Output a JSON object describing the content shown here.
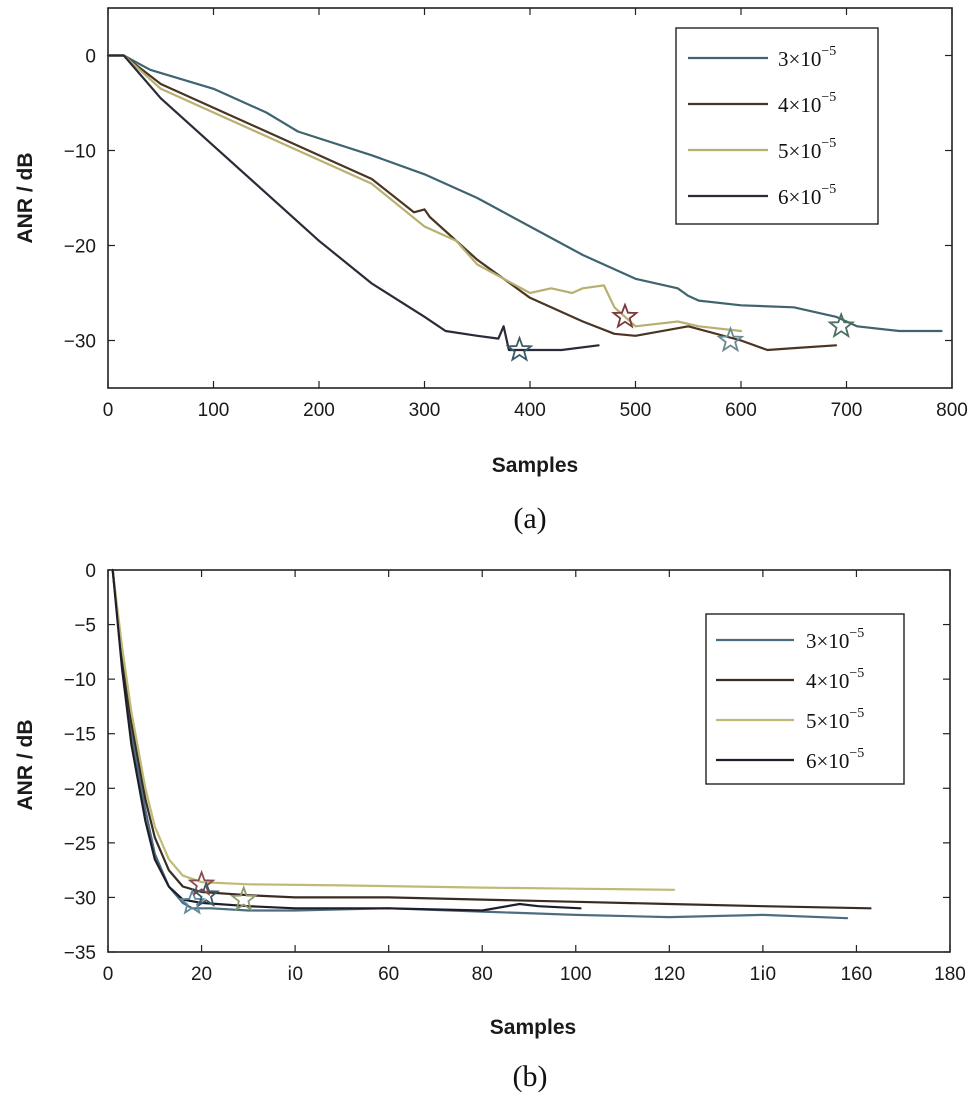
{
  "chart_data": [
    {
      "type": "line",
      "caption": "(a)",
      "xlabel": "Samples",
      "ylabel": "ANR / dB",
      "xlim": [
        0,
        800
      ],
      "ylim": [
        -35,
        5
      ],
      "xticks": [
        0,
        100,
        200,
        300,
        400,
        500,
        600,
        700,
        800
      ],
      "yticks": [
        0,
        -10,
        -20,
        -30
      ],
      "legend_position": "top-right",
      "series": [
        {
          "name": "3×10^-5",
          "base": "3×10",
          "exp": "−5",
          "color": "#3f6470",
          "x": [
            0,
            15,
            40,
            100,
            150,
            180,
            250,
            300,
            350,
            400,
            450,
            500,
            540,
            550,
            560,
            600,
            650,
            690,
            710,
            750,
            790
          ],
          "y": [
            0,
            0,
            -1.5,
            -3.5,
            -6,
            -8,
            -10.5,
            -12.5,
            -15,
            -18,
            -21,
            -23.5,
            -24.5,
            -25.3,
            -25.8,
            -26.3,
            -26.5,
            -27.5,
            -28.5,
            -29,
            -29
          ]
        },
        {
          "name": "4×10^-5",
          "base": "4×10",
          "exp": "−5",
          "color": "#4a3524",
          "x": [
            0,
            15,
            50,
            100,
            150,
            200,
            250,
            290,
            300,
            305,
            350,
            400,
            450,
            480,
            500,
            550,
            600,
            625,
            650,
            690
          ],
          "y": [
            0,
            0,
            -3,
            -5.5,
            -8,
            -10.5,
            -13,
            -16.5,
            -16.2,
            -17,
            -21.5,
            -25.5,
            -28,
            -29.3,
            -29.5,
            -28.5,
            -30,
            -31,
            -30.8,
            -30.5
          ]
        },
        {
          "name": "5×10^-5",
          "base": "5×10",
          "exp": "−5",
          "color": "#b8b070",
          "x": [
            0,
            15,
            50,
            100,
            150,
            200,
            250,
            300,
            330,
            350,
            400,
            420,
            440,
            450,
            470,
            480,
            500,
            540,
            560,
            600
          ],
          "y": [
            0,
            0,
            -3.5,
            -6,
            -8.5,
            -11,
            -13.5,
            -18,
            -19.5,
            -22,
            -25,
            -24.5,
            -25,
            -24.5,
            -24.2,
            -26.5,
            -28.5,
            -28,
            -28.5,
            -29
          ]
        },
        {
          "name": "6×10^-5",
          "base": "6×10",
          "exp": "−5",
          "color": "#2a2a38",
          "x": [
            0,
            15,
            50,
            100,
            150,
            200,
            250,
            300,
            320,
            350,
            370,
            375,
            380,
            400,
            430,
            465
          ],
          "y": [
            0,
            0,
            -4.5,
            -9.5,
            -14.5,
            -19.5,
            -24,
            -27.5,
            -29,
            -29.5,
            -29.8,
            -28.5,
            -31,
            -31,
            -31,
            -30.5
          ]
        }
      ],
      "markers": [
        {
          "series": "3×10^-5",
          "x": 695,
          "y": -28.5,
          "color": "#4a7060"
        },
        {
          "series": "4×10^-5",
          "x": 490,
          "y": -27.5,
          "color": "#7a3a3a"
        },
        {
          "series": "5×10^-5",
          "x": 590,
          "y": -30,
          "color": "#6a8a90"
        },
        {
          "series": "6×10^-5",
          "x": 390,
          "y": -31,
          "color": "#3a5a68"
        }
      ]
    },
    {
      "type": "line",
      "caption": "(b)",
      "xlabel": "Samples",
      "ylabel": "ANR / dB",
      "xlim": [
        0,
        180
      ],
      "ylim": [
        -35,
        0
      ],
      "xticks": [
        0,
        20,
        40,
        60,
        80,
        100,
        120,
        140,
        160,
        180
      ],
      "xticklabels": [
        "0",
        "20",
        "ⅰ0",
        "60",
        "80",
        "100",
        "120",
        "1ⅰ0",
        "160",
        "180"
      ],
      "yticks": [
        0,
        -5,
        -10,
        -15,
        -20,
        -25,
        -30,
        -35
      ],
      "legend_position": "top-right",
      "series": [
        {
          "name": "3×10^-5",
          "base": "3×10",
          "exp": "−5",
          "color": "#4a6e80",
          "x": [
            1,
            3,
            5,
            8,
            10,
            13,
            16,
            18,
            22,
            30,
            40,
            60,
            80,
            100,
            120,
            140,
            158
          ],
          "y": [
            0,
            -8,
            -15,
            -22,
            -26,
            -29,
            -30.5,
            -31,
            -31,
            -31.2,
            -31.2,
            -31,
            -31.3,
            -31.6,
            -31.8,
            -31.6,
            -31.9
          ]
        },
        {
          "name": "4×10^-5",
          "base": "4×10",
          "exp": "−5",
          "color": "#3a2c22",
          "x": [
            1,
            3,
            5,
            8,
            10,
            13,
            16,
            20,
            30,
            40,
            60,
            80,
            100,
            120,
            140,
            163
          ],
          "y": [
            0,
            -8,
            -14,
            -21,
            -24.5,
            -27.5,
            -29,
            -29.5,
            -29.8,
            -30,
            -30,
            -30.2,
            -30.4,
            -30.6,
            -30.8,
            -31
          ]
        },
        {
          "name": "5×10^-5",
          "base": "5×10",
          "exp": "−5",
          "color": "#c0ba78",
          "x": [
            1,
            3,
            5,
            8,
            10,
            13,
            16,
            20,
            30,
            50,
            80,
            100,
            121
          ],
          "y": [
            0,
            -7,
            -13,
            -20,
            -23.5,
            -26.5,
            -28,
            -28.6,
            -28.8,
            -28.9,
            -29.1,
            -29.2,
            -29.3
          ]
        },
        {
          "name": "6×10^-5",
          "base": "6×10",
          "exp": "−5",
          "color": "#1e1e2a",
          "x": [
            1,
            3,
            5,
            8,
            10,
            13,
            16,
            20,
            30,
            40,
            60,
            80,
            88,
            92,
            101
          ],
          "y": [
            0,
            -9,
            -16,
            -23,
            -26.5,
            -29,
            -30.2,
            -30.5,
            -30.8,
            -31,
            -31,
            -31.2,
            -30.6,
            -30.8,
            -31
          ]
        }
      ],
      "markers": [
        {
          "series": "3×10^-5",
          "x": 18,
          "y": -30.5,
          "color": "#5f8aa0"
        },
        {
          "series": "4×10^-5",
          "x": 20,
          "y": -28.8,
          "color": "#8a4a4a"
        },
        {
          "series": "5×10^-5",
          "x": 29,
          "y": -30.2,
          "color": "#8a9a6a"
        },
        {
          "series": "6×10^-5",
          "x": 21,
          "y": -29.8,
          "color": "#3a5a68"
        }
      ]
    }
  ]
}
